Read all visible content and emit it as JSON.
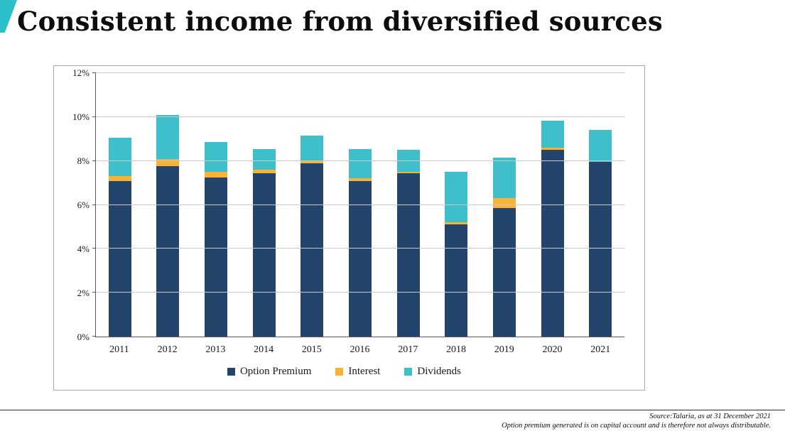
{
  "title": "Consistent income from diversified sources",
  "accent_color": "#2bbfc9",
  "chart_data": {
    "type": "bar",
    "stacked": true,
    "title": "",
    "xlabel": "",
    "ylabel": "",
    "categories": [
      "2011",
      "2012",
      "2013",
      "2014",
      "2015",
      "2016",
      "2017",
      "2018",
      "2019",
      "2020",
      "2021"
    ],
    "series": [
      {
        "name": "Option Premium",
        "color": "#24456b",
        "values": [
          7.1,
          7.75,
          7.25,
          7.45,
          7.9,
          7.1,
          7.45,
          5.1,
          5.85,
          8.5,
          7.95
        ]
      },
      {
        "name": "Interest",
        "color": "#f9b233",
        "values": [
          0.2,
          0.35,
          0.25,
          0.15,
          0.1,
          0.1,
          0.05,
          0.1,
          0.45,
          0.1,
          0.0
        ]
      },
      {
        "name": "Dividends",
        "color": "#3fbfc9",
        "values": [
          1.75,
          2.0,
          1.35,
          0.95,
          1.15,
          1.35,
          1.0,
          2.3,
          1.85,
          1.25,
          1.45
        ]
      }
    ],
    "totals": [
      9.05,
      10.1,
      8.85,
      8.55,
      9.15,
      8.55,
      8.5,
      7.5,
      8.15,
      9.85,
      9.4
    ],
    "ylim": [
      0,
      12
    ],
    "ytick_step": 2,
    "ytick_suffix": "%",
    "grid": true,
    "legend_position": "bottom"
  },
  "footer": {
    "source_line1": "Source:Talaria, as at 31 December 2021",
    "source_line2": "Option premium generated is on capital account and is therefore not always distributable."
  }
}
